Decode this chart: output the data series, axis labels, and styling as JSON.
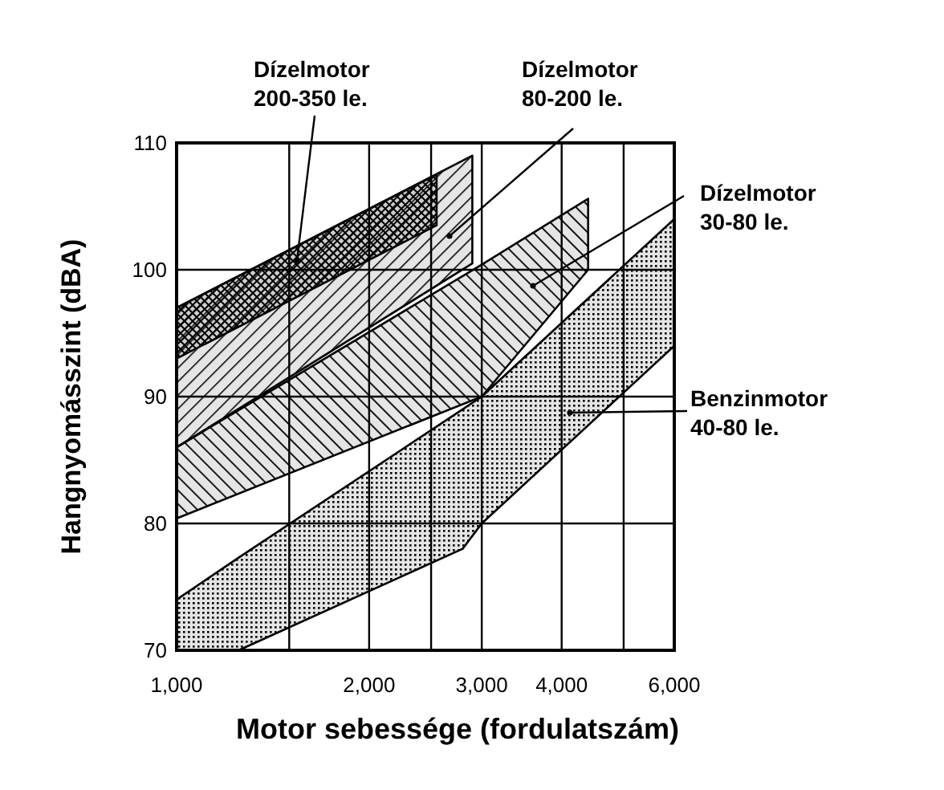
{
  "chart_data": {
    "type": "area",
    "xlabel": "Motor sebessége (fordulatszám)",
    "ylabel": "Hangnyomásszint (dBA)",
    "log": "x",
    "xlim": [
      1000,
      6000
    ],
    "ylim": [
      70,
      110
    ],
    "xticks": [
      {
        "value": 1000,
        "label": "1,000"
      },
      {
        "value": 1500,
        "label": null
      },
      {
        "value": 2000,
        "label": "2,000"
      },
      {
        "value": 2500,
        "label": null
      },
      {
        "value": 3000,
        "label": "3,000"
      },
      {
        "value": 4000,
        "label": "4,000"
      },
      {
        "value": 5000,
        "label": null
      },
      {
        "value": 6000,
        "label": "6,000"
      }
    ],
    "yticks": [
      70,
      80,
      90,
      100,
      110
    ],
    "grid": true,
    "series": [
      {
        "name": "Dízelmotor\n200-350 le.",
        "color": "#000000",
        "x": [
          1000,
          2550
        ],
        "values": [
          null,
          null
        ],
        "upper": [
          97,
          107.5
        ],
        "lower": [
          93,
          103.5
        ]
      },
      {
        "name": "Dízelmotor\n80-200 le.",
        "color": "#000000",
        "x": [
          1000,
          2900
        ],
        "values": [
          null,
          null
        ],
        "upper": [
          97,
          109
        ],
        "lower": [
          86,
          100.5
        ]
      },
      {
        "name": "Dízelmotor\n30-80 le.",
        "color": "#000000",
        "x": [
          1000,
          3000,
          4400
        ],
        "values": [
          null,
          null,
          null
        ],
        "upper": [
          86,
          100.4,
          105.6
        ],
        "lower": [
          80.4,
          90,
          100
        ]
      },
      {
        "name": "Benzinmotor\n40-80 le.",
        "color": "#000000",
        "x": [
          1000,
          1250,
          2800,
          3000,
          6000
        ],
        "values": [
          null,
          null,
          null,
          null,
          null
        ],
        "upper": [
          74,
          77.3,
          89,
          90,
          104
        ],
        "lower": [
          70,
          70,
          78,
          80,
          94
        ]
      }
    ]
  }
}
